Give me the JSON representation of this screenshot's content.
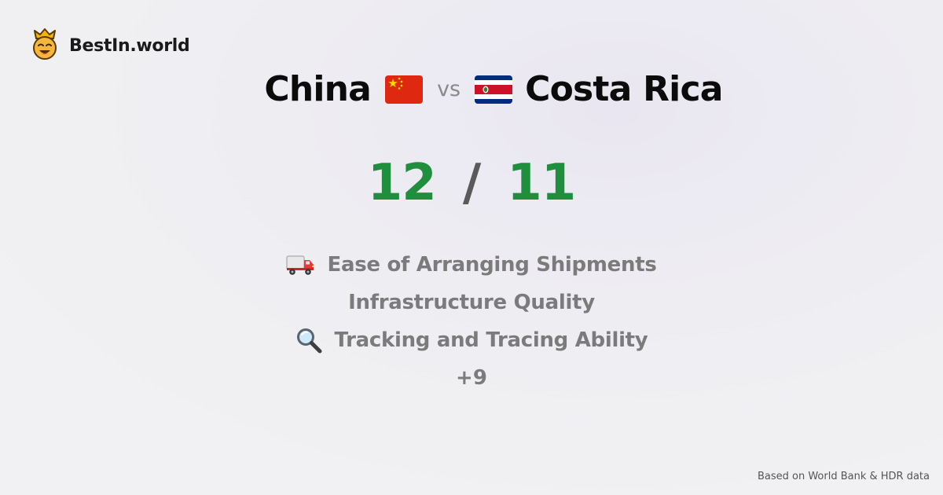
{
  "brand": {
    "name": "BestIn.world",
    "logo_icon": "crown-smiley-icon"
  },
  "comparison": {
    "left": {
      "name": "China",
      "flag_icon": "china-flag-icon"
    },
    "separator": "vs",
    "right": {
      "name": "Costa Rica",
      "flag_icon": "costa-rica-flag-icon"
    }
  },
  "score": {
    "left": "12",
    "divider": "/",
    "right": "11",
    "color": "#1f8f3d"
  },
  "categories": [
    {
      "label": "Ease of Arranging Shipments",
      "icon": "delivery-truck-icon"
    },
    {
      "label": "Infrastructure Quality",
      "icon": ""
    },
    {
      "label": "Tracking and Tracing Ability",
      "icon": "magnifying-glass-icon"
    }
  ],
  "more_count": "+9",
  "footer": {
    "source": "Based on World Bank & HDR data"
  }
}
